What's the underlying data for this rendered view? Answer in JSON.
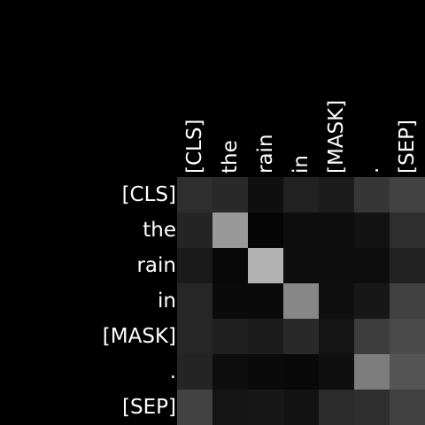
{
  "chart_data": {
    "type": "heatmap",
    "title": "",
    "xlabel": "",
    "ylabel": "",
    "x_labels": [
      "[CLS]",
      "the",
      "rain",
      "in",
      "[MASK]",
      ".",
      "[SEP]"
    ],
    "y_labels": [
      "[CLS]",
      "the",
      "rain",
      "in",
      "[MASK]",
      ".",
      "[SEP]"
    ],
    "colormap": "grayscale",
    "grid": false,
    "values": [
      [
        0.18,
        0.16,
        0.06,
        0.13,
        0.11,
        0.21,
        0.26
      ],
      [
        0.14,
        0.6,
        0.02,
        0.05,
        0.05,
        0.07,
        0.18
      ],
      [
        0.1,
        0.03,
        0.7,
        0.05,
        0.05,
        0.05,
        0.13
      ],
      [
        0.15,
        0.04,
        0.04,
        0.53,
        0.06,
        0.09,
        0.25
      ],
      [
        0.15,
        0.12,
        0.11,
        0.16,
        0.08,
        0.24,
        0.29
      ],
      [
        0.14,
        0.05,
        0.04,
        0.03,
        0.06,
        0.49,
        0.33
      ],
      [
        0.26,
        0.08,
        0.09,
        0.07,
        0.17,
        0.18,
        0.25
      ]
    ]
  },
  "colors": {
    "background": "#000000",
    "label": "#ffffff"
  }
}
